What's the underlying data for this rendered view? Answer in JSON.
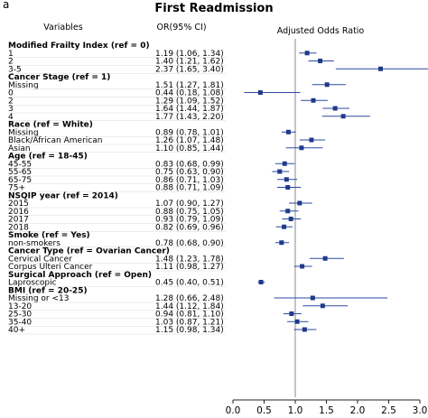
{
  "panel_label": "a",
  "chart_data": {
    "type": "forest",
    "title": "First Readmission",
    "column_headers": {
      "variables": "Variables",
      "or_ci": "OR(95% CI)",
      "plot": "Adjusted Odds Ratio"
    },
    "xlim": [
      0.0,
      3.0
    ],
    "x_ticks": [
      "0.0",
      "0.5",
      "1.0",
      "1.5",
      "2.0",
      "2.5",
      "3.0"
    ],
    "reference_line": 1.0,
    "colors": {
      "marker": "#1f3a8a",
      "ci_line": "#2b4aa0",
      "ref_line": "#8a8a8a",
      "row_sep": "#d9d9d9"
    },
    "groups": [
      {
        "name": "Modified Frailty Index (ref = 0)",
        "rows": [
          {
            "label": "1",
            "or_text": "1.19 (1.06,  1.34)",
            "or": 1.19,
            "lo": 1.06,
            "hi": 1.34
          },
          {
            "label": "2",
            "or_text": "1.40 (1.21,  1.62)",
            "or": 1.4,
            "lo": 1.21,
            "hi": 1.62
          },
          {
            "label": "3-5",
            "or_text": "2.37 (1.65,  3.40)",
            "or": 2.37,
            "lo": 1.65,
            "hi": 3.4
          }
        ]
      },
      {
        "name": "Cancer Stage (ref = 1)",
        "rows": [
          {
            "label": "Missing",
            "or_text": "1.51 (1.27,  1.81)",
            "or": 1.51,
            "lo": 1.27,
            "hi": 1.81
          },
          {
            "label": "0",
            "or_text": "0.44 (0.18,  1.08)",
            "or": 0.44,
            "lo": 0.18,
            "hi": 1.08
          },
          {
            "label": "2",
            "or_text": "1.29 (1.09,  1.52)",
            "or": 1.29,
            "lo": 1.09,
            "hi": 1.52
          },
          {
            "label": "3",
            "or_text": "1.64 (1.44,  1.87)",
            "or": 1.64,
            "lo": 1.44,
            "hi": 1.87
          },
          {
            "label": "4",
            "or_text": "1.77 (1.43,  2.20)",
            "or": 1.77,
            "lo": 1.43,
            "hi": 2.2
          }
        ]
      },
      {
        "name": "Race (ref = White)",
        "rows": [
          {
            "label": "Missing",
            "or_text": "0.89 (0.78,  1.01)",
            "or": 0.89,
            "lo": 0.78,
            "hi": 1.01
          },
          {
            "label": "Black/African American",
            "or_text": "1.26 (1.07,  1.48)",
            "or": 1.26,
            "lo": 1.07,
            "hi": 1.48
          },
          {
            "label": "Asian",
            "or_text": "1.10 (0.85,  1.44)",
            "or": 1.1,
            "lo": 0.85,
            "hi": 1.44
          }
        ]
      },
      {
        "name": "Age (ref = 18-45)",
        "rows": [
          {
            "label": "45-55",
            "or_text": "0.83 (0.68,  0.99)",
            "or": 0.83,
            "lo": 0.68,
            "hi": 0.99
          },
          {
            "label": "55-65",
            "or_text": "0.75 (0.63,  0.90)",
            "or": 0.75,
            "lo": 0.63,
            "hi": 0.9
          },
          {
            "label": "65-75",
            "or_text": "0.86 (0.71,  1.03)",
            "or": 0.86,
            "lo": 0.71,
            "hi": 1.03
          },
          {
            "label": "75+",
            "or_text": "0.88 (0.71,  1.09)",
            "or": 0.88,
            "lo": 0.71,
            "hi": 1.09
          }
        ]
      },
      {
        "name": "NSQIP year (ref = 2014)",
        "rows": [
          {
            "label": "2015",
            "or_text": "1.07 (0.90,  1.27)",
            "or": 1.07,
            "lo": 0.9,
            "hi": 1.27
          },
          {
            "label": "2016",
            "or_text": "0.88 (0.75,  1.05)",
            "or": 0.88,
            "lo": 0.75,
            "hi": 1.05
          },
          {
            "label": "2017",
            "or_text": "0.93 (0.79,  1.09)",
            "or": 0.93,
            "lo": 0.79,
            "hi": 1.09
          },
          {
            "label": "2018",
            "or_text": "0.82 (0.69,  0.96)",
            "or": 0.82,
            "lo": 0.69,
            "hi": 0.96
          }
        ]
      },
      {
        "name": "Smoke (ref = Yes)",
        "rows": [
          {
            "label": "non-smokers",
            "or_text": "0.78 (0.68,  0.90)",
            "or": 0.78,
            "lo": 0.68,
            "hi": 0.9
          }
        ]
      },
      {
        "name": "Cancer Type (ref = Ovarian Cancer)",
        "rows": [
          {
            "label": "Cervical Cancer",
            "or_text": "1.48 (1.23,  1.78)",
            "or": 1.48,
            "lo": 1.23,
            "hi": 1.78
          },
          {
            "label": "Corpus Ulteri Cancer",
            "or_text": "1.11 (0.98,  1.27)",
            "or": 1.11,
            "lo": 0.98,
            "hi": 1.27
          }
        ]
      },
      {
        "name": "Surgical Approach (ref = Open)",
        "rows": [
          {
            "label": "Laproscopic",
            "or_text": "0.45 (0.40,  0.51)",
            "or": 0.45,
            "lo": 0.4,
            "hi": 0.51
          }
        ]
      },
      {
        "name": "BMI (ref = 20-25)",
        "rows": [
          {
            "label": "Missing or <13",
            "or_text": "1.28 (0.66,  2.48)",
            "or": 1.28,
            "lo": 0.66,
            "hi": 2.48
          },
          {
            "label": "13-20",
            "or_text": "1.44 (1.12,  1.84)",
            "or": 1.44,
            "lo": 1.12,
            "hi": 1.84
          },
          {
            "label": "25-30",
            "or_text": "0.94 (0.81,  1.10)",
            "or": 0.94,
            "lo": 0.81,
            "hi": 1.1
          },
          {
            "label": "35-40",
            "or_text": "1.03 (0.87,  1.21)",
            "or": 1.03,
            "lo": 0.87,
            "hi": 1.21
          },
          {
            "label": "40+",
            "or_text": "1.15 (0.98,  1.34)",
            "or": 1.15,
            "lo": 0.98,
            "hi": 1.34
          }
        ]
      }
    ]
  }
}
